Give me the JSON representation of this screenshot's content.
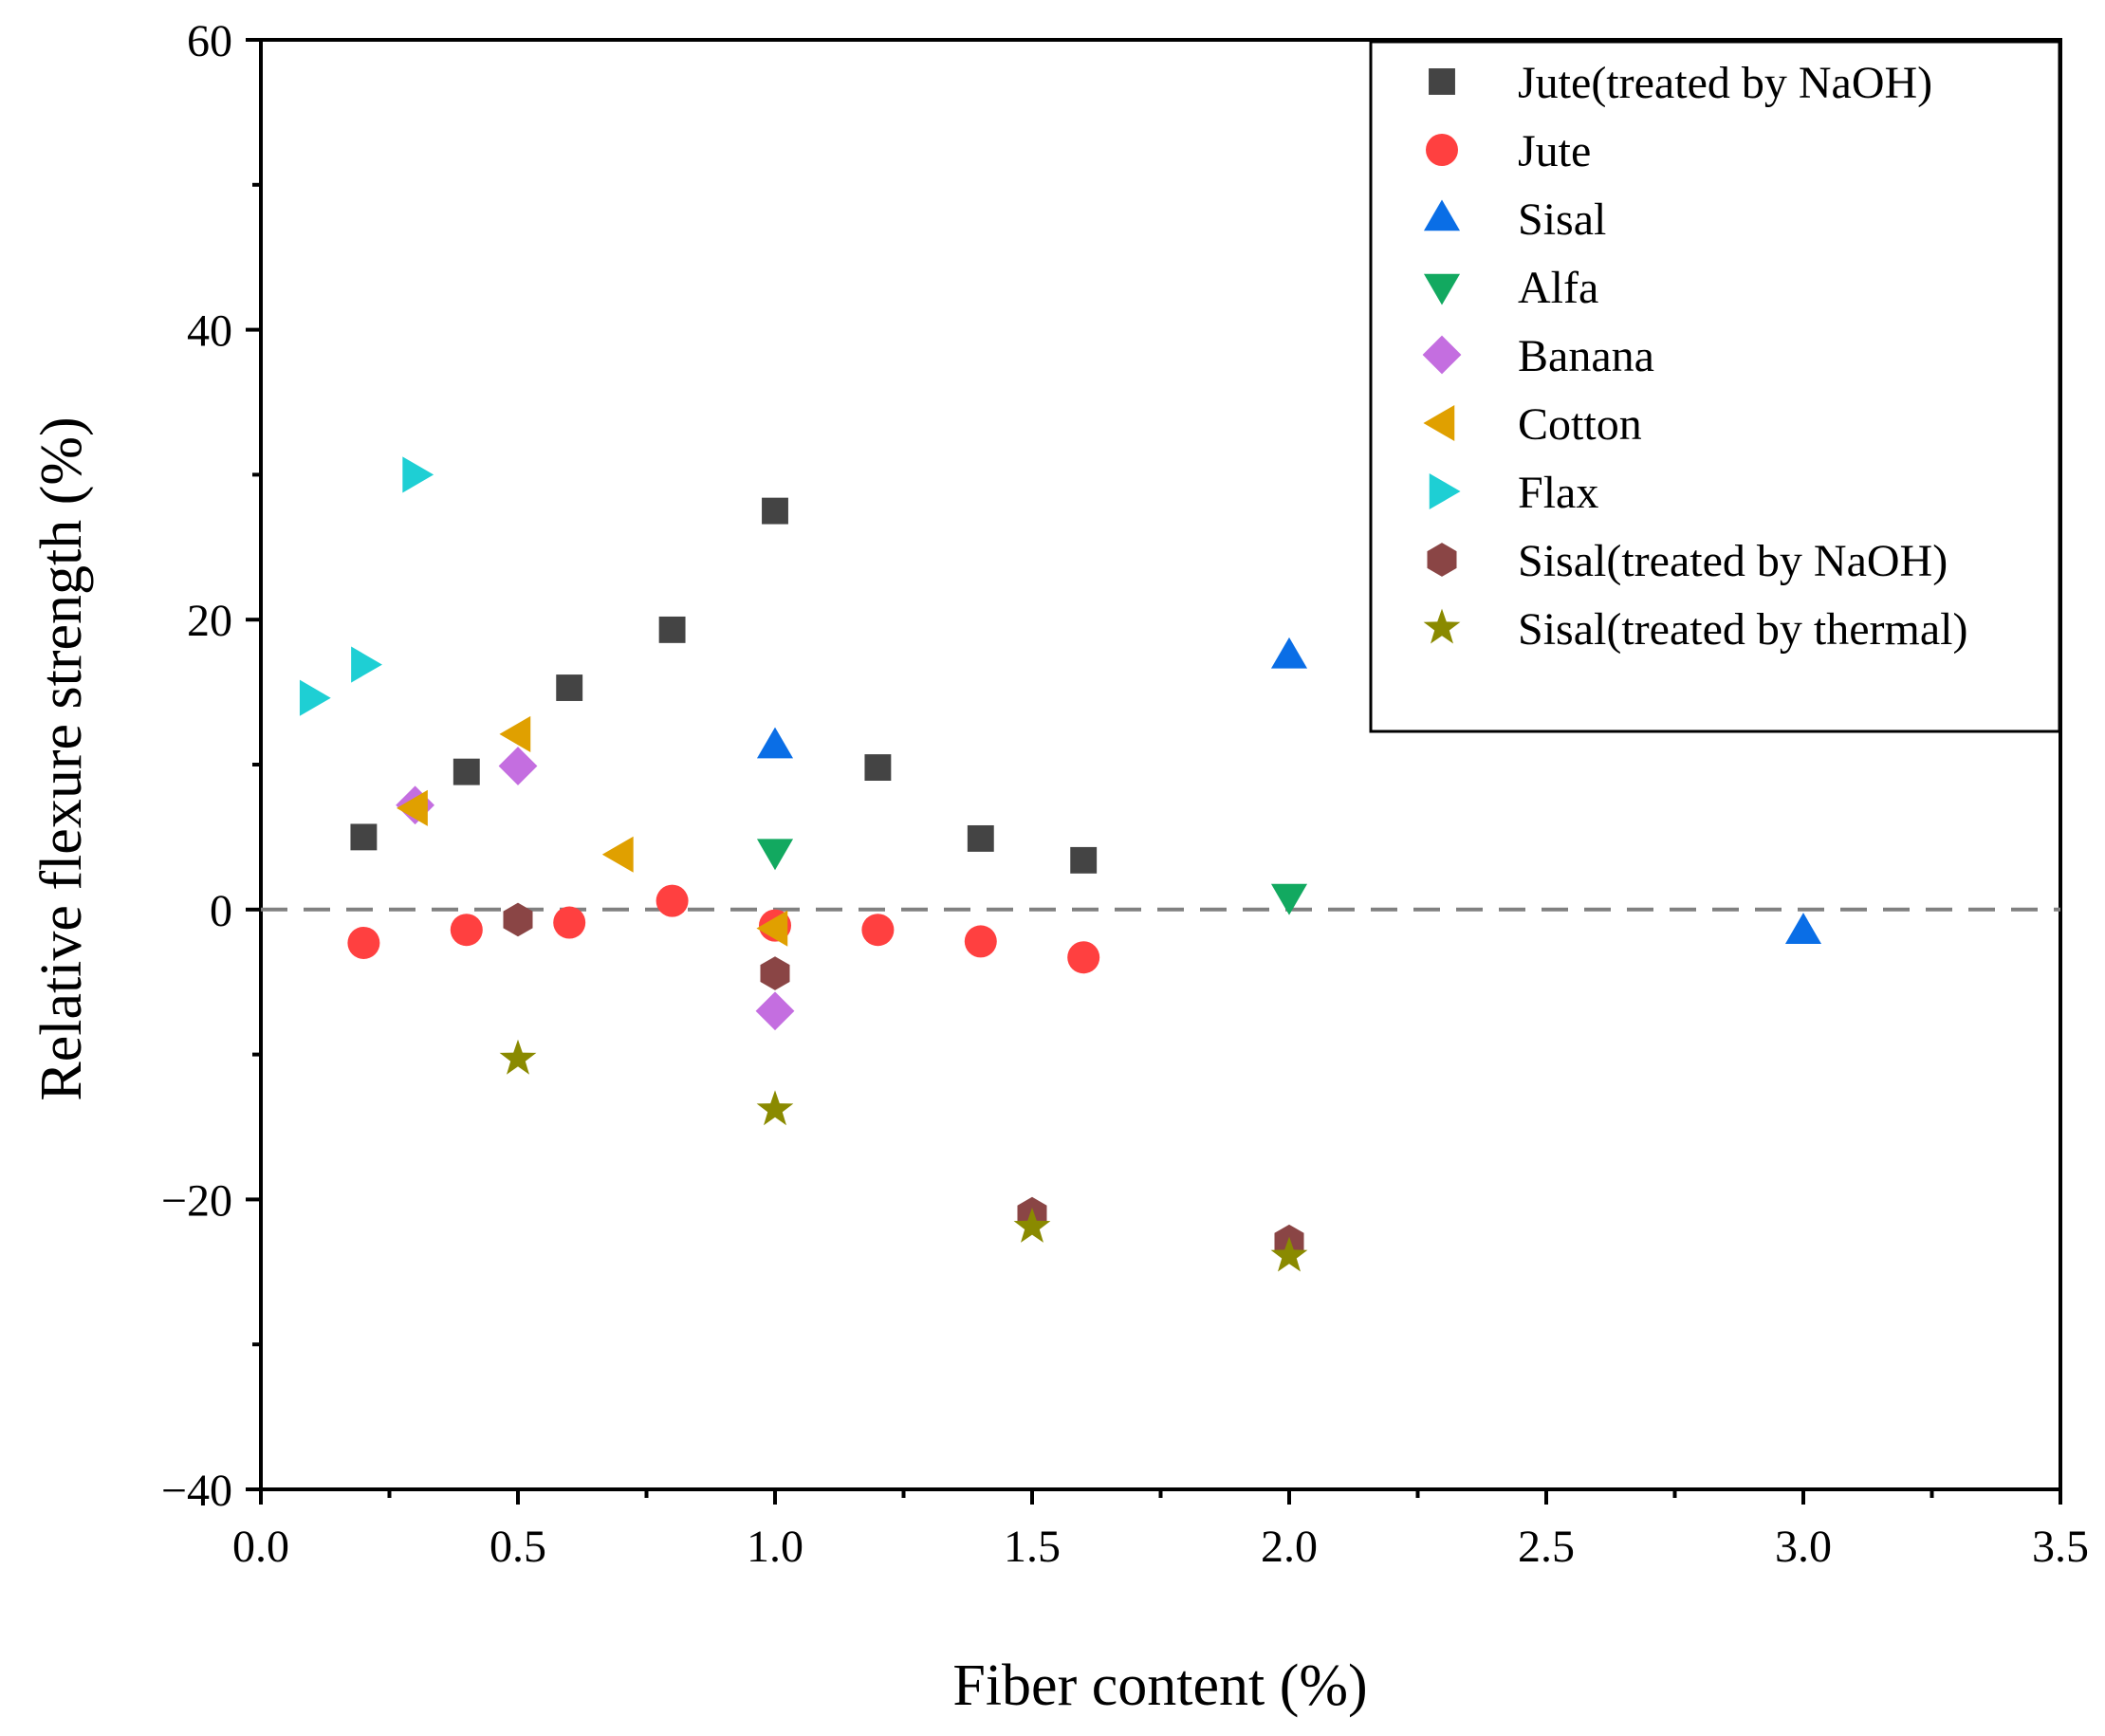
{
  "chart_data": {
    "type": "scatter",
    "title": "",
    "xlabel": "Fiber content (%)",
    "ylabel": "Relative flexure strength (%)",
    "xlim": [
      0.0,
      3.5
    ],
    "ylim": [
      -40,
      60
    ],
    "xticks": [
      "0.0",
      "0.5",
      "1.0",
      "1.5",
      "2.0",
      "2.5",
      "3.0",
      "3.5"
    ],
    "yticks": [
      "−40",
      "−20",
      "0",
      "20",
      "40",
      "60"
    ],
    "xtick_values": [
      0.0,
      0.5,
      1.0,
      1.5,
      2.0,
      2.5,
      3.0,
      3.5
    ],
    "ytick_values": [
      -40,
      -20,
      0,
      20,
      40,
      60
    ],
    "reference_line": {
      "y": 0,
      "style": "dashed",
      "color": "#808080"
    },
    "legend_position": "top-right",
    "series": [
      {
        "name": "Jute(treated by NaOH)",
        "marker": "square",
        "color": "#444444",
        "x": [
          0.2,
          0.4,
          0.6,
          0.8,
          1.0,
          1.2,
          1.4,
          1.6
        ],
        "y": [
          5.0,
          9.5,
          15.3,
          19.3,
          27.5,
          9.8,
          4.9,
          3.4
        ]
      },
      {
        "name": "Jute",
        "marker": "circle",
        "color": "#ff4040",
        "x": [
          0.2,
          0.4,
          0.6,
          0.8,
          1.0,
          1.2,
          1.4,
          1.6
        ],
        "y": [
          -2.3,
          -1.4,
          -0.9,
          0.6,
          -1.1,
          -1.4,
          -2.2,
          -3.3
        ]
      },
      {
        "name": "Sisal",
        "marker": "triangle-up",
        "color": "#0a6ee6",
        "x": [
          1.0,
          2.0,
          3.0
        ],
        "y": [
          11.3,
          17.5,
          -1.5
        ]
      },
      {
        "name": "Alfa",
        "marker": "triangle-down",
        "color": "#12a960",
        "x": [
          1.0,
          2.0
        ],
        "y": [
          4.0,
          0.9
        ]
      },
      {
        "name": "Banana",
        "marker": "diamond",
        "color": "#c46ee0",
        "x": [
          0.3,
          0.5,
          1.0
        ],
        "y": [
          7.2,
          9.9,
          -7.0
        ]
      },
      {
        "name": "Cotton",
        "marker": "triangle-left",
        "color": "#e0a000",
        "x": [
          0.3,
          0.5,
          0.7,
          1.0
        ],
        "y": [
          7.0,
          12.1,
          3.8,
          -1.3
        ]
      },
      {
        "name": "Flax",
        "marker": "triangle-right",
        "color": "#1ecfd4",
        "x": [
          0.1,
          0.2,
          0.3
        ],
        "y": [
          14.6,
          16.9,
          30.0
        ]
      },
      {
        "name": "Sisal(treated by NaOH)",
        "marker": "hexagon",
        "color": "#8a4545",
        "x": [
          0.5,
          1.0,
          1.5,
          2.0
        ],
        "y": [
          -0.7,
          -4.4,
          -21.0,
          -22.9
        ]
      },
      {
        "name": "Sisal(treated by thermal)",
        "marker": "star",
        "color": "#8a8a00",
        "x": [
          0.5,
          1.0,
          1.5,
          2.0
        ],
        "y": [
          -10.3,
          -13.8,
          -21.9,
          -23.9
        ]
      }
    ]
  }
}
